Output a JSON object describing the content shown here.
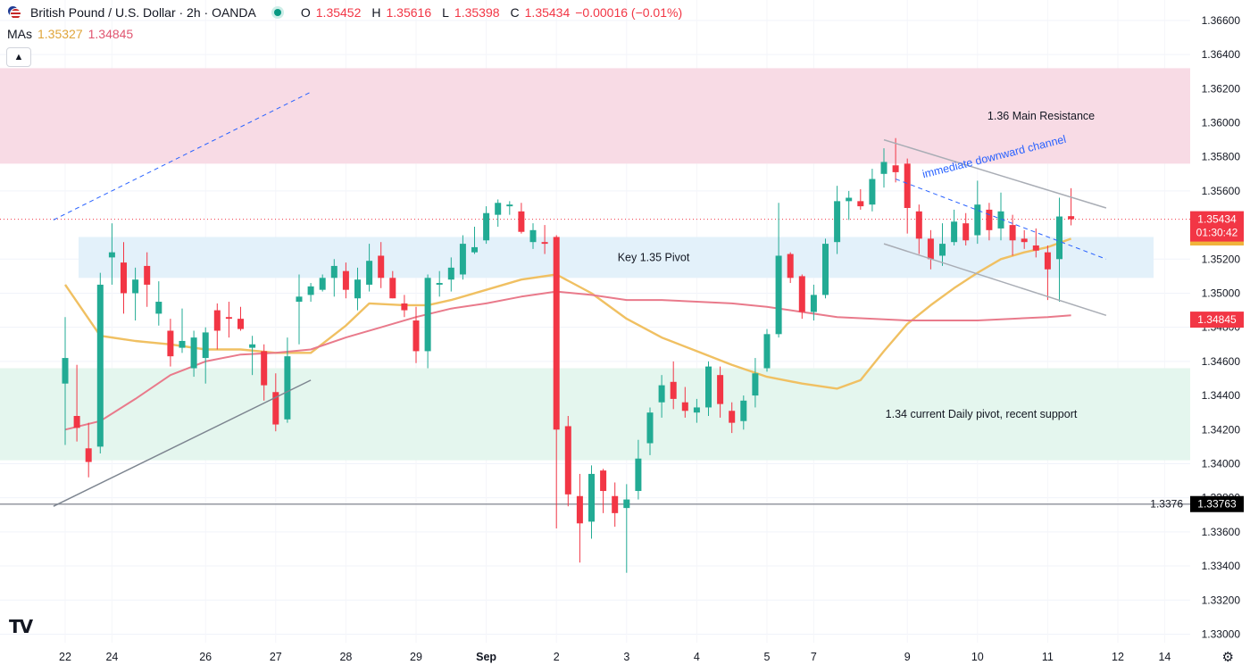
{
  "header": {
    "symbol_title": "British Pound / U.S. Dollar · 2h · OANDA",
    "ohlc": [
      {
        "key": "O",
        "value": "1.35452"
      },
      {
        "key": "H",
        "value": "1.35616"
      },
      {
        "key": "L",
        "value": "1.35398"
      },
      {
        "key": "C",
        "value": "1.35434"
      },
      {
        "key": "",
        "value": "−0.00016 (−0.01%)"
      }
    ],
    "mas_label": "MAs",
    "ma_fast_value": "1.35327",
    "ma_slow_value": "1.34845",
    "collapse_icon": "chevron-up-icon",
    "tv_logo": "TV"
  },
  "colors": {
    "up": "#22ab94",
    "down": "#f23645",
    "ma_fast": "#f0c062",
    "ma_slow": "#e97a8b",
    "resistance_zone": "#f8dbe5",
    "pivot_zone": "#e3f1fa",
    "support_zone": "#e4f6ee"
  },
  "chart_data": {
    "type": "candlestick",
    "instrument": "British Pound / U.S. Dollar",
    "timeframe": "2h",
    "ylim": [
      1.3295,
      1.3672
    ],
    "y_ticks": [
      "1.36600",
      "1.36400",
      "1.36200",
      "1.36000",
      "1.35800",
      "1.35600",
      "1.35200",
      "1.35000",
      "1.34800",
      "1.34600",
      "1.34400",
      "1.34200",
      "1.34000",
      "1.33800",
      "1.33600",
      "1.33400",
      "1.33200",
      "1.33000"
    ],
    "x_labels": [
      {
        "label": "22",
        "slot": 0
      },
      {
        "label": "24",
        "slot": 4
      },
      {
        "label": "26",
        "slot": 12
      },
      {
        "label": "27",
        "slot": 18
      },
      {
        "label": "28",
        "slot": 24
      },
      {
        "label": "29",
        "slot": 30
      },
      {
        "label": "Sep",
        "slot": 36
      },
      {
        "label": "2",
        "slot": 42
      },
      {
        "label": "3",
        "slot": 48
      },
      {
        "label": "4",
        "slot": 54
      },
      {
        "label": "5",
        "slot": 60
      },
      {
        "label": "7",
        "slot": 64
      },
      {
        "label": "9",
        "slot": 72
      },
      {
        "label": "10",
        "slot": 78
      },
      {
        "label": "11",
        "slot": 84
      },
      {
        "label": "12",
        "slot": 90
      },
      {
        "label": "14",
        "slot": 94
      }
    ],
    "candles": [
      {
        "o": 1.3447,
        "h": 1.3486,
        "l": 1.3411,
        "c": 1.3462
      },
      {
        "o": 1.3428,
        "h": 1.3458,
        "l": 1.3413,
        "c": 1.3421
      },
      {
        "o": 1.3409,
        "h": 1.3424,
        "l": 1.3392,
        "c": 1.3401
      },
      {
        "o": 1.341,
        "h": 1.3512,
        "l": 1.3406,
        "c": 1.3505
      },
      {
        "o": 1.3521,
        "h": 1.3541,
        "l": 1.3505,
        "c": 1.3524
      },
      {
        "o": 1.3518,
        "h": 1.353,
        "l": 1.3488,
        "c": 1.35
      },
      {
        "o": 1.35,
        "h": 1.3515,
        "l": 1.3484,
        "c": 1.3508
      },
      {
        "o": 1.3516,
        "h": 1.3524,
        "l": 1.3492,
        "c": 1.3505
      },
      {
        "o": 1.3488,
        "h": 1.3507,
        "l": 1.3481,
        "c": 1.3495
      },
      {
        "o": 1.3478,
        "h": 1.3485,
        "l": 1.3457,
        "c": 1.3463
      },
      {
        "o": 1.3468,
        "h": 1.3491,
        "l": 1.3465,
        "c": 1.3472
      },
      {
        "o": 1.3456,
        "h": 1.3478,
        "l": 1.3451,
        "c": 1.3474
      },
      {
        "o": 1.3462,
        "h": 1.348,
        "l": 1.3447,
        "c": 1.3477
      },
      {
        "o": 1.349,
        "h": 1.3494,
        "l": 1.3467,
        "c": 1.3478
      },
      {
        "o": 1.3486,
        "h": 1.3495,
        "l": 1.3474,
        "c": 1.3485
      },
      {
        "o": 1.3485,
        "h": 1.3492,
        "l": 1.3478,
        "c": 1.3479
      },
      {
        "o": 1.3468,
        "h": 1.3475,
        "l": 1.3452,
        "c": 1.347
      },
      {
        "o": 1.3466,
        "h": 1.347,
        "l": 1.3437,
        "c": 1.3446
      },
      {
        "o": 1.3442,
        "h": 1.3453,
        "l": 1.3419,
        "c": 1.3423
      },
      {
        "o": 1.3426,
        "h": 1.3474,
        "l": 1.3424,
        "c": 1.3463
      },
      {
        "o": 1.3495,
        "h": 1.3511,
        "l": 1.347,
        "c": 1.3498
      },
      {
        "o": 1.3499,
        "h": 1.3506,
        "l": 1.3495,
        "c": 1.3504
      },
      {
        "o": 1.3502,
        "h": 1.3511,
        "l": 1.3501,
        "c": 1.3509
      },
      {
        "o": 1.3509,
        "h": 1.352,
        "l": 1.3498,
        "c": 1.3516
      },
      {
        "o": 1.3513,
        "h": 1.3518,
        "l": 1.3497,
        "c": 1.3502
      },
      {
        "o": 1.3497,
        "h": 1.3515,
        "l": 1.349,
        "c": 1.3508
      },
      {
        "o": 1.3505,
        "h": 1.3529,
        "l": 1.3501,
        "c": 1.3519
      },
      {
        "o": 1.3522,
        "h": 1.353,
        "l": 1.3503,
        "c": 1.3509
      },
      {
        "o": 1.3509,
        "h": 1.3513,
        "l": 1.3497,
        "c": 1.3497
      },
      {
        "o": 1.3494,
        "h": 1.3499,
        "l": 1.3486,
        "c": 1.349
      },
      {
        "o": 1.3484,
        "h": 1.3492,
        "l": 1.3459,
        "c": 1.3466
      },
      {
        "o": 1.3466,
        "h": 1.3511,
        "l": 1.3456,
        "c": 1.3509
      },
      {
        "o": 1.3505,
        "h": 1.3513,
        "l": 1.3498,
        "c": 1.3506
      },
      {
        "o": 1.3508,
        "h": 1.3521,
        "l": 1.3501,
        "c": 1.3515
      },
      {
        "o": 1.3511,
        "h": 1.3534,
        "l": 1.3508,
        "c": 1.3529
      },
      {
        "o": 1.3524,
        "h": 1.3539,
        "l": 1.3523,
        "c": 1.3527
      },
      {
        "o": 1.3531,
        "h": 1.3551,
        "l": 1.3529,
        "c": 1.3547
      },
      {
        "o": 1.3546,
        "h": 1.3555,
        "l": 1.3539,
        "c": 1.3553
      },
      {
        "o": 1.3551,
        "h": 1.3554,
        "l": 1.3546,
        "c": 1.3552
      },
      {
        "o": 1.3548,
        "h": 1.3553,
        "l": 1.3535,
        "c": 1.3536
      },
      {
        "o": 1.353,
        "h": 1.3541,
        "l": 1.3526,
        "c": 1.3537
      },
      {
        "o": 1.353,
        "h": 1.354,
        "l": 1.3523,
        "c": 1.3529
      },
      {
        "o": 1.3533,
        "h": 1.3534,
        "l": 1.3362,
        "c": 1.342
      },
      {
        "o": 1.3422,
        "h": 1.3428,
        "l": 1.3375,
        "c": 1.3382
      },
      {
        "o": 1.3381,
        "h": 1.3394,
        "l": 1.3342,
        "c": 1.3365
      },
      {
        "o": 1.3366,
        "h": 1.3399,
        "l": 1.3356,
        "c": 1.3394
      },
      {
        "o": 1.3396,
        "h": 1.3397,
        "l": 1.3371,
        "c": 1.3384
      },
      {
        "o": 1.3381,
        "h": 1.3389,
        "l": 1.3363,
        "c": 1.3371
      },
      {
        "o": 1.3374,
        "h": 1.3388,
        "l": 1.3336,
        "c": 1.3379
      },
      {
        "o": 1.3384,
        "h": 1.3414,
        "l": 1.3379,
        "c": 1.3403
      },
      {
        "o": 1.3412,
        "h": 1.3433,
        "l": 1.3405,
        "c": 1.343
      },
      {
        "o": 1.3436,
        "h": 1.3452,
        "l": 1.3427,
        "c": 1.3446
      },
      {
        "o": 1.3448,
        "h": 1.346,
        "l": 1.3432,
        "c": 1.3438
      },
      {
        "o": 1.3436,
        "h": 1.3445,
        "l": 1.3427,
        "c": 1.3431
      },
      {
        "o": 1.343,
        "h": 1.3438,
        "l": 1.3424,
        "c": 1.3433
      },
      {
        "o": 1.3433,
        "h": 1.346,
        "l": 1.3428,
        "c": 1.3457
      },
      {
        "o": 1.3452,
        "h": 1.3457,
        "l": 1.3427,
        "c": 1.3435
      },
      {
        "o": 1.3431,
        "h": 1.3436,
        "l": 1.3418,
        "c": 1.3424
      },
      {
        "o": 1.3425,
        "h": 1.344,
        "l": 1.342,
        "c": 1.3437
      },
      {
        "o": 1.344,
        "h": 1.3462,
        "l": 1.3433,
        "c": 1.3453
      },
      {
        "o": 1.3456,
        "h": 1.3479,
        "l": 1.3454,
        "c": 1.3476
      },
      {
        "o": 1.3476,
        "h": 1.3553,
        "l": 1.3474,
        "c": 1.3522
      },
      {
        "o": 1.3523,
        "h": 1.3524,
        "l": 1.3506,
        "c": 1.3509
      },
      {
        "o": 1.351,
        "h": 1.3511,
        "l": 1.3485,
        "c": 1.3489
      },
      {
        "o": 1.3489,
        "h": 1.3505,
        "l": 1.3484,
        "c": 1.3499
      },
      {
        "o": 1.3499,
        "h": 1.3532,
        "l": 1.3497,
        "c": 1.3529
      },
      {
        "o": 1.353,
        "h": 1.3563,
        "l": 1.3523,
        "c": 1.3554
      },
      {
        "o": 1.3554,
        "h": 1.356,
        "l": 1.3543,
        "c": 1.3556
      },
      {
        "o": 1.3554,
        "h": 1.3561,
        "l": 1.3549,
        "c": 1.3551
      },
      {
        "o": 1.3552,
        "h": 1.3573,
        "l": 1.3548,
        "c": 1.3567
      },
      {
        "o": 1.357,
        "h": 1.3585,
        "l": 1.3562,
        "c": 1.3577
      },
      {
        "o": 1.3575,
        "h": 1.3591,
        "l": 1.3565,
        "c": 1.3571
      },
      {
        "o": 1.3576,
        "h": 1.3579,
        "l": 1.3535,
        "c": 1.355
      },
      {
        "o": 1.3548,
        "h": 1.3552,
        "l": 1.3523,
        "c": 1.3532
      },
      {
        "o": 1.3532,
        "h": 1.3537,
        "l": 1.3514,
        "c": 1.352
      },
      {
        "o": 1.3522,
        "h": 1.3541,
        "l": 1.3516,
        "c": 1.3529
      },
      {
        "o": 1.353,
        "h": 1.3549,
        "l": 1.3528,
        "c": 1.3542
      },
      {
        "o": 1.3541,
        "h": 1.3547,
        "l": 1.3528,
        "c": 1.3531
      },
      {
        "o": 1.3534,
        "h": 1.3566,
        "l": 1.3529,
        "c": 1.3552
      },
      {
        "o": 1.3549,
        "h": 1.3553,
        "l": 1.3531,
        "c": 1.3537
      },
      {
        "o": 1.3538,
        "h": 1.3559,
        "l": 1.3531,
        "c": 1.3548
      },
      {
        "o": 1.354,
        "h": 1.3546,
        "l": 1.3522,
        "c": 1.3531
      },
      {
        "o": 1.3532,
        "h": 1.3537,
        "l": 1.3526,
        "c": 1.353
      },
      {
        "o": 1.3528,
        "h": 1.3538,
        "l": 1.3521,
        "c": 1.3525
      },
      {
        "o": 1.3524,
        "h": 1.3528,
        "l": 1.3496,
        "c": 1.3514
      },
      {
        "o": 1.352,
        "h": 1.3556,
        "l": 1.3495,
        "c": 1.3545
      },
      {
        "o": 1.35452,
        "h": 1.35616,
        "l": 1.35398,
        "c": 1.35434
      }
    ],
    "moving_averages": [
      {
        "name": "MA fast",
        "value_label": "1.35327",
        "color": "#f0c062",
        "points": [
          [
            0,
            1.3505
          ],
          [
            3,
            1.3475
          ],
          [
            6,
            1.3472
          ],
          [
            9,
            1.347
          ],
          [
            12,
            1.3467
          ],
          [
            15,
            1.3467
          ],
          [
            18,
            1.3465
          ],
          [
            21,
            1.3465
          ],
          [
            24,
            1.3481
          ],
          [
            26,
            1.3494
          ],
          [
            29,
            1.3493
          ],
          [
            31,
            1.3493
          ],
          [
            33,
            1.3496
          ],
          [
            36,
            1.3502
          ],
          [
            39,
            1.3508
          ],
          [
            42,
            1.3511
          ],
          [
            45,
            1.35
          ],
          [
            48,
            1.3485
          ],
          [
            51,
            1.3474
          ],
          [
            54,
            1.3466
          ],
          [
            57,
            1.3458
          ],
          [
            60,
            1.3451
          ],
          [
            63,
            1.3447
          ],
          [
            66,
            1.3444
          ],
          [
            68,
            1.3449
          ],
          [
            70,
            1.3466
          ],
          [
            72,
            1.3482
          ],
          [
            74,
            1.3493
          ],
          [
            76,
            1.3503
          ],
          [
            78,
            1.3512
          ],
          [
            80,
            1.352
          ],
          [
            82,
            1.3524
          ],
          [
            84,
            1.3527
          ],
          [
            86,
            1.3532
          ]
        ]
      },
      {
        "name": "MA slow",
        "value_label": "1.34845",
        "color": "#e97a8b",
        "points": [
          [
            0,
            1.342
          ],
          [
            3,
            1.3425
          ],
          [
            6,
            1.3438
          ],
          [
            9,
            1.3452
          ],
          [
            12,
            1.346
          ],
          [
            15,
            1.3464
          ],
          [
            18,
            1.3465
          ],
          [
            21,
            1.3467
          ],
          [
            24,
            1.3474
          ],
          [
            27,
            1.348
          ],
          [
            30,
            1.3486
          ],
          [
            33,
            1.3491
          ],
          [
            36,
            1.3494
          ],
          [
            39,
            1.3498
          ],
          [
            42,
            1.3501
          ],
          [
            45,
            1.3499
          ],
          [
            48,
            1.3496
          ],
          [
            51,
            1.3496
          ],
          [
            54,
            1.3495
          ],
          [
            57,
            1.3494
          ],
          [
            60,
            1.3492
          ],
          [
            63,
            1.3489
          ],
          [
            66,
            1.3486
          ],
          [
            69,
            1.3485
          ],
          [
            72,
            1.3484
          ],
          [
            75,
            1.3484
          ],
          [
            78,
            1.3484
          ],
          [
            81,
            1.3485
          ],
          [
            84,
            1.3486
          ],
          [
            86,
            1.3487
          ]
        ]
      }
    ],
    "zones": [
      {
        "name": "resistance",
        "from": 1.3576,
        "to": 1.3632,
        "label": "1.36 Main Resistance",
        "color": "#f8dbe5"
      },
      {
        "name": "pivot",
        "from": 1.3509,
        "to": 1.3533,
        "label": "Key 1.35 Pivot",
        "color": "#e3f1fa"
      },
      {
        "name": "support",
        "from": 1.3402,
        "to": 1.3456,
        "label": "1.34 current Daily pivot, recent support",
        "color": "#e4f6ee"
      }
    ],
    "trend_lines": [
      {
        "name": "long-uptrend",
        "style": "solid",
        "color": "#7d8590",
        "from": [
          -1,
          1.3375
        ],
        "to": [
          21,
          1.3449
        ]
      },
      {
        "name": "old-channel-dashed",
        "style": "dashed",
        "color": "#2962ff",
        "from": [
          -1,
          1.3543
        ],
        "to": [
          21,
          1.3618
        ]
      },
      {
        "name": "channel-upper",
        "style": "solid",
        "color": "#a9adb5",
        "from": [
          70,
          1.359
        ],
        "to": [
          89,
          1.355
        ]
      },
      {
        "name": "channel-mid",
        "style": "dashed",
        "color": "#2962ff",
        "from": [
          71,
          1.3567
        ],
        "to": [
          89,
          1.352
        ]
      },
      {
        "name": "channel-lower",
        "style": "solid",
        "color": "#a9adb5",
        "from": [
          70,
          1.3529
        ],
        "to": [
          89,
          1.3487
        ]
      }
    ],
    "annotations": [
      {
        "text": "immediate downward channel",
        "at": [
          79.5,
          1.3578
        ],
        "color": "#2962ff",
        "angle": -14
      }
    ],
    "horizontal_line": {
      "price": 1.33763,
      "label": "1.3376",
      "badge": "1.33763"
    },
    "current_price": {
      "value": "1.35434",
      "countdown": "01:30:42"
    }
  }
}
